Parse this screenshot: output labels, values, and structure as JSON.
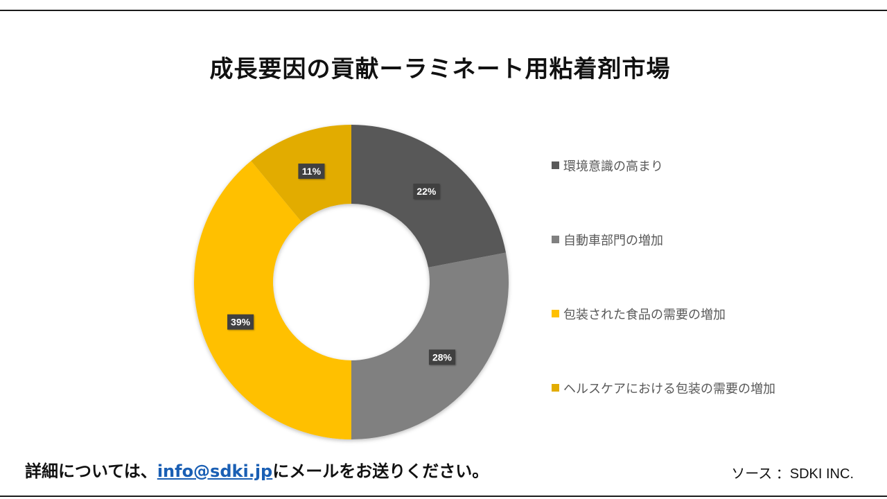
{
  "chart_data": {
    "type": "pie",
    "variant": "donut",
    "title": "成長要因の貢献ーラミネート用粘着剤市場",
    "categories": [
      "環境意識の高まり",
      "自動車部門の増加",
      "包装された食品の需要の増加",
      "ヘルスケアにおける包装の需要の増加"
    ],
    "values": [
      22,
      28,
      39,
      11
    ],
    "labels": [
      "22%",
      "28%",
      "39%",
      "11%"
    ],
    "unit": "%",
    "colors": [
      "#595959",
      "#808080",
      "#ffc000",
      "#e2ac00"
    ],
    "legend_position": "right"
  },
  "footer": {
    "prefix": "詳細については、",
    "link": "info@sdki.jp",
    "suffix": "にメールをお送りください。"
  },
  "source": "ソース ：SDKI INC."
}
